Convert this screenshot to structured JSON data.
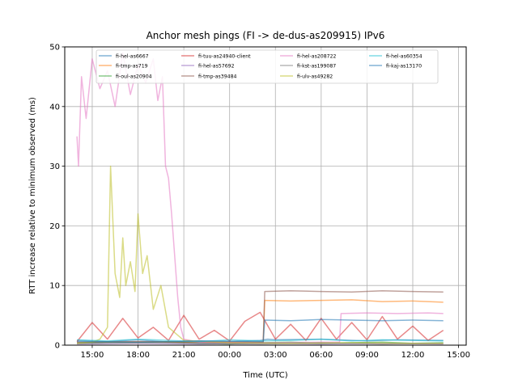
{
  "chart_data": {
    "type": "line",
    "title": "Anchor mesh pings (FI -> de-dus-as209915) IPv6",
    "xlabel": "Time (UTC)",
    "ylabel": "RTT increase relative to minimum observed (ms)",
    "x_unit": "hours (UTC, day 1 14:00 to day 2 14:00)",
    "xlim": [
      13.2,
      39.5
    ],
    "ylim": [
      0,
      50
    ],
    "xticks": [
      {
        "value": 15,
        "label": "15:00"
      },
      {
        "value": 18,
        "label": "18:00"
      },
      {
        "value": 21,
        "label": "21:00"
      },
      {
        "value": 24,
        "label": "00:00"
      },
      {
        "value": 27,
        "label": "03:00"
      },
      {
        "value": 30,
        "label": "06:00"
      },
      {
        "value": 33,
        "label": "09:00"
      },
      {
        "value": 36,
        "label": "12:00"
      },
      {
        "value": 39,
        "label": "15:00"
      }
    ],
    "yticks": [
      0,
      10,
      20,
      30,
      40,
      50
    ],
    "grid": true,
    "legend_position": "top",
    "series": [
      {
        "name": "fi-hel-as6667",
        "color": "#1f77b4",
        "x": [
          14,
          16,
          18,
          20,
          22,
          24,
          26,
          26.5,
          27,
          30,
          33,
          35,
          38
        ],
        "y": [
          0.8,
          0.6,
          0.9,
          0.5,
          0.7,
          0.6,
          0.8,
          1,
          0.9,
          1,
          0.7,
          0.9,
          0.8
        ]
      },
      {
        "name": "fi-tmp-as719",
        "color": "#ff7f0e",
        "x": [
          14,
          18,
          22,
          26.2,
          26.3,
          28,
          30,
          32,
          34,
          36,
          38
        ],
        "y": [
          0.4,
          0.6,
          0.5,
          0.5,
          7.5,
          7.4,
          7.5,
          7.6,
          7.3,
          7.4,
          7.2
        ]
      },
      {
        "name": "fi-oul-as20904",
        "color": "#2ca02c",
        "x": [
          14,
          16,
          18,
          20,
          22,
          24,
          26,
          28,
          30,
          32,
          34,
          36,
          38
        ],
        "y": [
          0.3,
          0.5,
          0.4,
          0.6,
          0.3,
          0.2,
          0.4,
          0.5,
          0.3,
          0.4,
          0.5,
          0.3,
          0.4
        ]
      },
      {
        "name": "fi-tuu-as24940-client",
        "color": "#d62728",
        "x": [
          14,
          15,
          16,
          17,
          18,
          19,
          20,
          21,
          22,
          23,
          24,
          25,
          26,
          27,
          28,
          29,
          30,
          31,
          32,
          33,
          34,
          35,
          36,
          37,
          38
        ],
        "y": [
          0.6,
          3.8,
          1,
          4.5,
          1.2,
          3,
          0.8,
          5,
          1,
          2.5,
          0.7,
          4,
          5.5,
          1,
          3.5,
          0.8,
          4.5,
          1,
          3.8,
          0.9,
          4.8,
          1,
          3.2,
          0.8,
          2.5
        ]
      },
      {
        "name": "fi-hel-as57692",
        "color": "#9467bd",
        "x": [
          14,
          18,
          22,
          26,
          30,
          34,
          38
        ],
        "y": [
          0.2,
          0.3,
          0.2,
          0.3,
          0.2,
          0.3,
          0.2
        ]
      },
      {
        "name": "fi-tmp-as39484",
        "color": "#8c564b",
        "x": [
          14,
          18,
          22,
          26.2,
          26.3,
          28,
          30,
          32,
          34,
          36,
          38
        ],
        "y": [
          0.5,
          0.6,
          0.4,
          0.5,
          9,
          9.1,
          9,
          8.9,
          9.1,
          9,
          8.9
        ]
      },
      {
        "name": "fi-hel-as208722",
        "color": "#e377c2",
        "x": [
          14,
          14.1,
          14.3,
          14.6,
          15,
          15.5,
          16,
          16.5,
          17,
          17.5,
          18,
          18.5,
          19,
          19.3,
          19.6,
          19.8,
          20,
          20.2,
          20.4,
          20.6,
          20.8,
          21,
          22,
          26,
          30,
          31.2,
          31.3,
          33,
          35,
          37,
          38
        ],
        "y": [
          35,
          30,
          45,
          38,
          48,
          43,
          46,
          40,
          49,
          42,
          47,
          44,
          48,
          41,
          45,
          30,
          28,
          22,
          15,
          8,
          3,
          1,
          0.5,
          0.4,
          0.5,
          0.5,
          5.3,
          5.4,
          5.3,
          5.4,
          5.3
        ]
      },
      {
        "name": "fi-kst-as199087",
        "color": "#7f7f7f",
        "x": [
          14,
          18,
          22,
          26,
          28,
          30,
          32,
          34,
          36,
          38
        ],
        "y": [
          0.3,
          0.4,
          0.3,
          0.2,
          0.3,
          0.4,
          0.3,
          0.2,
          0.3,
          0.3
        ]
      },
      {
        "name": "fi-ulv-as49282",
        "color": "#bcbd22",
        "x": [
          14,
          15,
          15.5,
          16,
          16.2,
          16.5,
          16.8,
          17,
          17.2,
          17.5,
          17.8,
          18,
          18.3,
          18.6,
          19,
          19.5,
          20,
          21,
          24,
          28,
          32,
          36,
          38
        ],
        "y": [
          0.3,
          0.5,
          1,
          3,
          30,
          12,
          8,
          18,
          10,
          14,
          9,
          22,
          12,
          15,
          6,
          10,
          3,
          0.8,
          0.4,
          0.3,
          0.4,
          0.3,
          0.3
        ]
      },
      {
        "name": "fi-hel-as60354",
        "color": "#17becf",
        "x": [
          14,
          16,
          18,
          20,
          22,
          24,
          26,
          28,
          30,
          32,
          34,
          36,
          38
        ],
        "y": [
          0.9,
          0.7,
          1,
          0.8,
          0.6,
          0.9,
          0.7,
          0.8,
          1,
          0.7,
          0.9,
          0.8,
          0.7
        ]
      },
      {
        "name": "fi-kaj-as13170",
        "color": "#1f77b4",
        "x": [
          14,
          18,
          22,
          26.2,
          26.3,
          28,
          30,
          32,
          34,
          36,
          38
        ],
        "y": [
          0.6,
          0.5,
          0.7,
          0.6,
          4.2,
          4.1,
          4.3,
          4.2,
          4.1,
          4.2,
          4.1
        ]
      }
    ]
  }
}
